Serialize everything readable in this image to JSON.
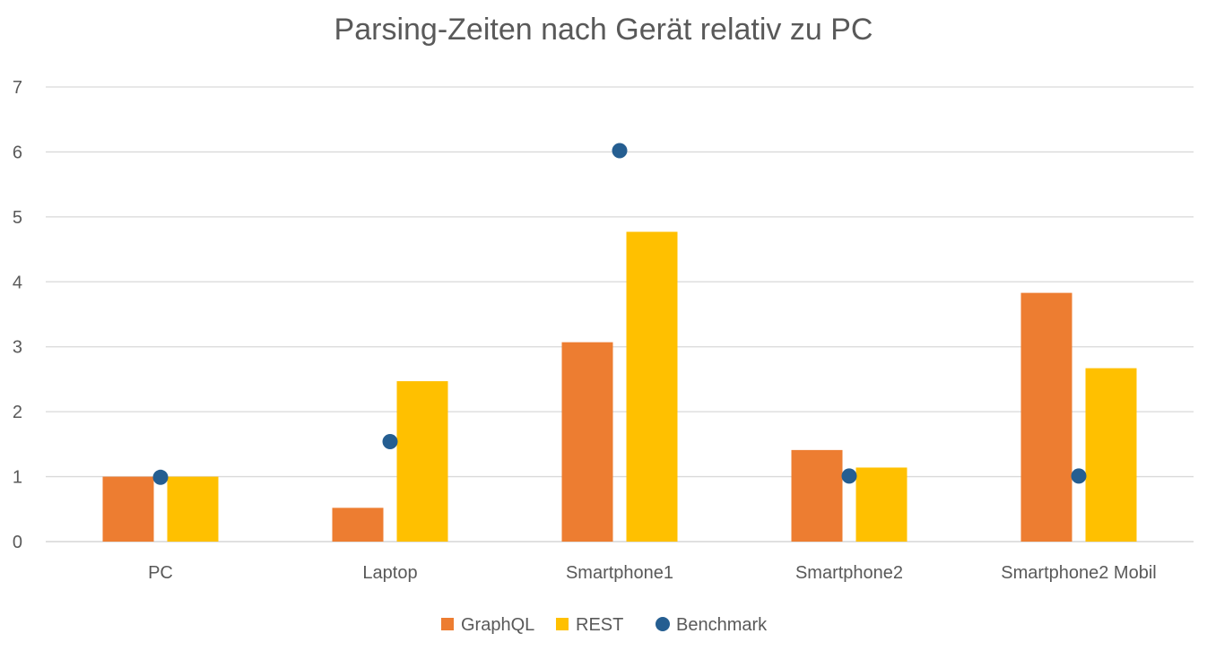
{
  "chart_data": {
    "type": "bar",
    "title": "Parsing-Zeiten nach Gerät relativ zu PC",
    "xlabel": "",
    "ylabel": "",
    "categories": [
      "PC",
      "Laptop",
      "Smartphone1",
      "Smartphone2",
      "Smartphone2 Mobil"
    ],
    "series": [
      {
        "name": "GraphQL",
        "kind": "bar",
        "color": "#ED7D31",
        "values": [
          1.0,
          0.52,
          3.07,
          1.41,
          3.83
        ]
      },
      {
        "name": "REST",
        "kind": "bar",
        "color": "#FFC000",
        "values": [
          1.0,
          2.47,
          4.77,
          1.14,
          2.67
        ]
      },
      {
        "name": "Benchmark",
        "kind": "scatter",
        "color": "#255E91",
        "values": [
          0.99,
          1.54,
          6.02,
          1.01,
          1.01
        ]
      }
    ],
    "ylim": [
      0,
      7
    ],
    "yticks": [
      0,
      1,
      2,
      3,
      4,
      5,
      6,
      7
    ],
    "grid": true,
    "legend_position": "bottom"
  }
}
